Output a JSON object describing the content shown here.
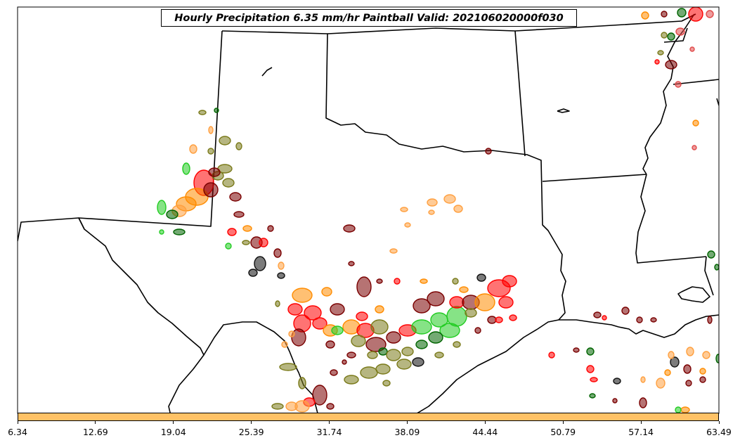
{
  "title": "Hourly Precipitation 6.35 mm/hr Paintball Valid: 202106020000f030",
  "colorbar": {
    "color": "#ffc266",
    "ticks": [
      "6.34",
      "12.69",
      "19.04",
      "25.39",
      "31.74",
      "38.09",
      "44.44",
      "50.79",
      "57.14",
      "63.49"
    ]
  },
  "colors": {
    "red": "#ff0000",
    "dark_red": "#7a0000",
    "orange": "#ff8c00",
    "light_orange": "#ffa040",
    "green": "#22cc22",
    "dark_green": "#006400",
    "olive": "#7a7a1a",
    "black": "#111111",
    "salmon": "#e04a4a"
  }
}
